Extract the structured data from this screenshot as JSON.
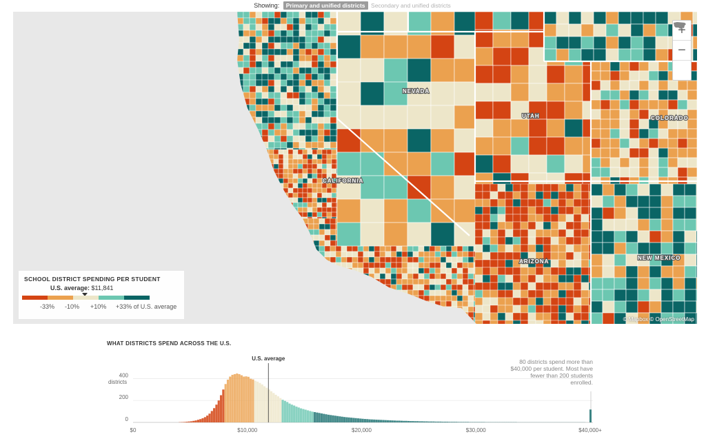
{
  "toggle": {
    "label": "Showing:",
    "active": "Primary and unified districts",
    "inactive": "Secondary and unified districts"
  },
  "map": {
    "states": [
      "NEVADA",
      "UTAH",
      "COLORADO",
      "CALIFORNIA",
      "ARIZONA",
      "NEW MEXICO"
    ],
    "zoom_in": "+",
    "zoom_out": "−",
    "reset_icon": "usa-icon",
    "attribution": "© Mapbox © OpenStreetMap"
  },
  "legend": {
    "title": "SCHOOL DISTRICT SPENDING PER STUDENT",
    "avg_label": "U.S. average:",
    "avg_value": "$11,841",
    "colors": [
      "#d44413",
      "#eba14f",
      "#ede6c9",
      "#6cc7b1",
      "#0a6565"
    ],
    "ticks": [
      "-33%",
      "-10%",
      "+10%",
      "+33% of U.S. average"
    ]
  },
  "histogram": {
    "title": "WHAT DISTRICTS SPEND ACROSS THE U.S.",
    "y_unit": "districts",
    "avg_marker": "U.S. average",
    "note": "80 districts spend more than $40,000 per student. Most have fewer than 200 students enrolled."
  },
  "chart_data": {
    "type": "bar",
    "title": "WHAT DISTRICTS SPEND ACROSS THE U.S.",
    "xlabel": "",
    "ylabel": "districts",
    "x_ticks": [
      "$0",
      "$10,000",
      "$20,000",
      "$30,000",
      "$40,000+"
    ],
    "y_ticks": [
      "0",
      "200",
      "400"
    ],
    "xlim": [
      0,
      40000
    ],
    "ylim": [
      0,
      480
    ],
    "bin_width": 200,
    "bin_start": 4000,
    "us_average": 11841,
    "values": [
      2,
      3,
      4,
      6,
      8,
      10,
      14,
      18,
      24,
      30,
      38,
      48,
      62,
      80,
      104,
      130,
      162,
      200,
      248,
      300,
      350,
      390,
      418,
      434,
      440,
      446,
      440,
      430,
      418,
      420,
      416,
      398,
      392,
      380,
      372,
      360,
      346,
      330,
      316,
      300,
      284,
      268,
      252,
      238,
      222,
      206,
      196,
      186,
      172,
      162,
      154,
      144,
      136,
      128,
      122,
      116,
      110,
      104,
      98,
      94,
      90,
      86,
      82,
      78,
      74,
      70,
      67,
      64,
      61,
      58,
      55,
      52,
      49,
      47,
      45,
      43,
      41,
      39,
      37,
      35,
      33,
      31,
      30,
      28,
      27,
      26,
      25,
      24,
      23,
      22,
      21,
      20,
      19,
      18,
      17,
      16,
      16,
      15,
      14,
      14,
      13,
      12,
      12,
      11,
      11,
      10,
      10,
      9,
      9,
      8,
      8,
      8,
      7,
      7,
      7,
      6,
      6,
      6,
      5,
      5,
      5,
      5,
      4,
      4,
      4,
      4,
      4,
      3,
      3,
      3,
      3,
      3,
      3,
      3,
      2,
      2,
      2,
      2,
      2,
      2,
      2,
      2,
      2,
      2,
      2,
      2,
      2,
      2,
      1,
      1,
      1,
      1,
      1,
      1,
      1,
      1,
      1,
      1,
      1,
      1,
      1,
      1,
      1,
      1,
      1,
      1,
      1,
      1,
      1,
      1,
      1,
      1,
      1,
      1,
      1,
      1,
      1,
      1
    ],
    "overflow_bin": {
      "label": "$40,000+",
      "value": 80
    }
  }
}
